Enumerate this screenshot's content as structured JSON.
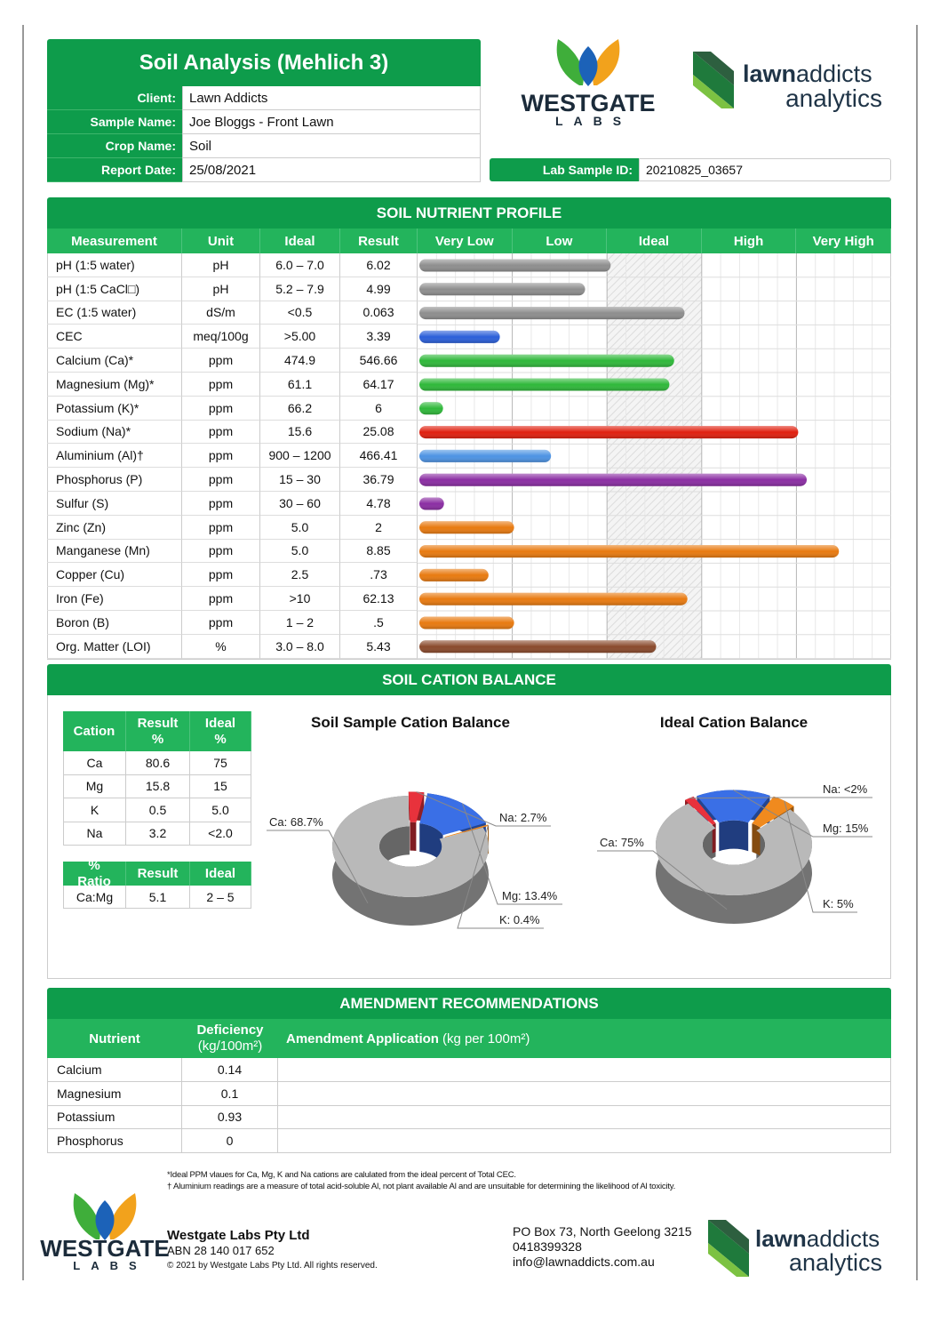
{
  "logo": {
    "westgate": "WESTGATE",
    "labs": "LABS",
    "lawn": "lawn",
    "addicts": "addicts",
    "analytics": "analytics"
  },
  "header": {
    "title": "Soil Analysis (Mehlich 3)",
    "fields": [
      {
        "label": "Client:",
        "value": "Lawn Addicts"
      },
      {
        "label": "Sample Name:",
        "value": "Joe Bloggs - Front Lawn"
      },
      {
        "label": "Crop Name:",
        "value": "Soil"
      },
      {
        "label": "Report Date:",
        "value": "25/08/2021"
      }
    ],
    "lab_sample_id": {
      "label": "Lab Sample ID:",
      "value": "20210825_03657"
    }
  },
  "nutrient_profile": {
    "title": "SOIL NUTRIENT PROFILE",
    "columns": [
      "Measurement",
      "Unit",
      "Ideal",
      "Result"
    ],
    "levels": [
      "Very Low",
      "Low",
      "Ideal",
      "High",
      "Very High"
    ],
    "rows": [
      [
        "pH (1:5 water)",
        "pH",
        "6.0 – 7.0",
        "6.02"
      ],
      [
        "pH (1:5 CaCl□)",
        "pH",
        "5.2 – 7.9",
        "4.99"
      ],
      [
        "EC (1:5 water)",
        "dS/m",
        "<0.5",
        "0.063"
      ],
      [
        "CEC",
        "meq/100g",
        ">5.00",
        "3.39"
      ],
      [
        "Calcium (Ca)*",
        "ppm",
        "474.9",
        "546.66"
      ],
      [
        "Magnesium (Mg)*",
        "ppm",
        "61.1",
        "64.17"
      ],
      [
        "Potassium (K)*",
        "ppm",
        "66.2",
        "6"
      ],
      [
        "Sodium (Na)*",
        "ppm",
        "15.6",
        "25.08"
      ],
      [
        "Aluminium (Al)†",
        "ppm",
        "900 – 1200",
        "466.41"
      ],
      [
        "Phosphorus (P)",
        "ppm",
        "15 – 30",
        "36.79"
      ],
      [
        "Sulfur (S)",
        "ppm",
        "30 – 60",
        "4.78"
      ],
      [
        "Zinc (Zn)",
        "ppm",
        "5.0",
        "2"
      ],
      [
        "Manganese (Mn)",
        "ppm",
        "5.0",
        "8.85"
      ],
      [
        "Copper (Cu)",
        "ppm",
        "2.5",
        ".73"
      ],
      [
        "Iron (Fe)",
        "ppm",
        ">10",
        "62.13"
      ],
      [
        "Boron (B)",
        "ppm",
        "1 – 2",
        ".5"
      ],
      [
        "Org. Matter (LOI)",
        "%",
        "3.0 – 8.0",
        "5.43"
      ]
    ],
    "bar_values": [
      2.02,
      1.75,
      2.8,
      0.85,
      2.69,
      2.64,
      0.25,
      4.0,
      1.39,
      4.09,
      0.26,
      1.0,
      4.43,
      0.73,
      2.83,
      1.0,
      2.5
    ],
    "bar_colors": [
      "#8e8e8e",
      "#8e8e8e",
      "#8e8e8e",
      "#2b5fd9",
      "#2fb83a",
      "#2fb83a",
      "#2fb83a",
      "#e0200f",
      "#4d93e3",
      "#8b2ea3",
      "#8b2ea3",
      "#e87a10",
      "#e87a10",
      "#e87a10",
      "#e87a10",
      "#e87a10",
      "#8a4a2c"
    ]
  },
  "cation_balance": {
    "title": "SOIL CATION BALANCE",
    "cation_table": {
      "columns": [
        "Cation",
        "Result %",
        "Ideal %"
      ],
      "rows": [
        [
          "Ca",
          "80.6",
          "75"
        ],
        [
          "Mg",
          "15.8",
          "15"
        ],
        [
          "K",
          "0.5",
          "5.0"
        ],
        [
          "Na",
          "3.2",
          "<2.0"
        ]
      ]
    },
    "ratio_table": {
      "columns": [
        "% Ratio",
        "Result",
        "Ideal"
      ],
      "rows": [
        [
          "Ca:Mg",
          "5.1",
          "2 – 5"
        ]
      ]
    },
    "charts": [
      {
        "type": "pie",
        "title": "Soil Sample Cation Balance",
        "values": [
          68.7,
          2.7,
          13.4,
          0.4
        ],
        "value_labels": [
          "Ca: 68.7%",
          "Na: 2.7%",
          "Mg: 13.4%",
          "K: 0.4%"
        ],
        "colors": [
          "#b9b9b9",
          "#e8323c",
          "#3a6fe6",
          "#f08a1e"
        ]
      },
      {
        "type": "pie",
        "title": "Ideal Cation Balance",
        "values": [
          75,
          2,
          15,
          5
        ],
        "value_labels": [
          "Ca: 75%",
          "Na: <2%",
          "Mg: 15%",
          "K: 5%"
        ],
        "colors": [
          "#b9b9b9",
          "#e8323c",
          "#3a6fe6",
          "#f08a1e"
        ]
      }
    ]
  },
  "amendment": {
    "title": "AMENDMENT RECOMMENDATIONS",
    "columns": [
      "Nutrient",
      "Deficiency",
      "Amendment Application"
    ],
    "column_units": [
      "(kg/100m²)",
      "(kg per 100m²)"
    ],
    "rows": [
      [
        "Calcium",
        "0.14"
      ],
      [
        "Magnesium",
        "0.1"
      ],
      [
        "Potassium",
        "0.93"
      ],
      [
        "Phosphorus",
        "0"
      ]
    ]
  },
  "footnotes": [
    "*Ideal PPM vlaues for Ca, Mg, K and Na cations are calulated from the ideal percent of Total CEC.",
    "† Aluminium readings are a measure of total acid-soluble Al, not plant available Al and are unsuitable for determining the likelihood of Al toxicity."
  ],
  "footer": {
    "company": "Westgate Labs Pty Ltd",
    "abn": "ABN 28 140 017 652",
    "copyright": "© 2021 by Westgate Labs Pty Ltd. All rights reserved.",
    "address": [
      "PO Box 73, North Geelong 3215",
      "0418399328",
      "info@lawnaddicts.com.au"
    ]
  }
}
